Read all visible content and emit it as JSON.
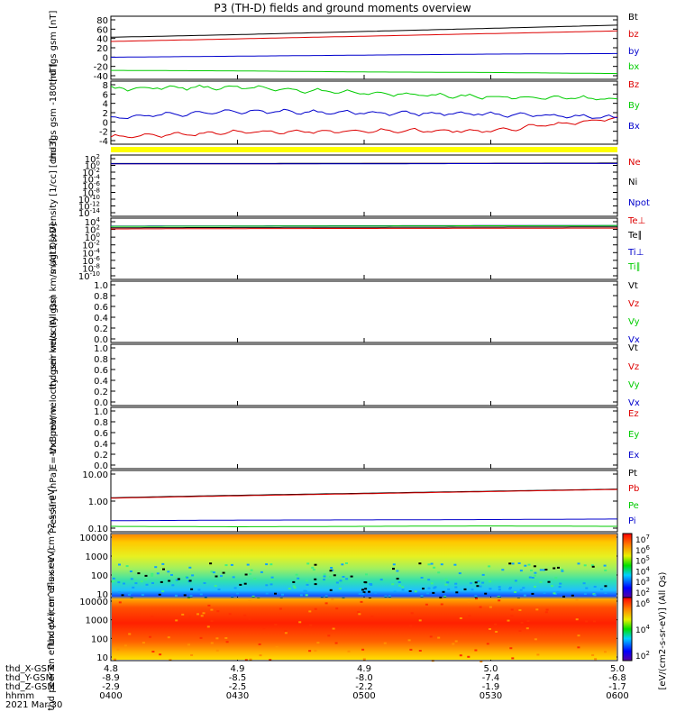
{
  "title": "P3 (TH-D) fields and ground moments overview",
  "footer": {
    "date": "2021 Mar 30",
    "coord_rows": [
      {
        "label": "thd_X-GSM",
        "values": [
          "4.8",
          "4.9",
          "4.9",
          "5.0",
          "5.0"
        ]
      },
      {
        "label": "thd_Y-GSM",
        "values": [
          "-8.9",
          "-8.5",
          "-8.0",
          "-7.4",
          "-6.8"
        ]
      },
      {
        "label": "thd_Z-GSM",
        "values": [
          "-2.9",
          "-2.5",
          "-2.2",
          "-1.9",
          "-1.7"
        ]
      },
      {
        "label": "hhmm",
        "values": [
          "0400",
          "0430",
          "0500",
          "0530",
          "0600"
        ]
      }
    ]
  },
  "colorbars": [
    {
      "unit": "[eV/(cm2-s-sr-eV)] (All Qs)",
      "ticks": [
        "10^7",
        "10^6",
        "10^5",
        "10^4",
        "10^3",
        "10^2"
      ]
    },
    {
      "unit": "[eV/(cm2-s-sr-eV)]",
      "ticks": [
        "10^6",
        "10^4",
        "10^2"
      ]
    }
  ],
  "chart_data": [
    {
      "type": "line",
      "ylabel": "thd fgs gsm [nT]",
      "ylim": [
        -40,
        80
      ],
      "ticks": [
        "80",
        "60",
        "40",
        "20",
        "0",
        "-20",
        "-40"
      ],
      "x": [
        "0400",
        "0430",
        "0500",
        "0530",
        "0600"
      ],
      "series": [
        {
          "name": "Bt",
          "color": "#000000",
          "values": [
            40,
            45,
            51,
            57,
            63
          ]
        },
        {
          "name": "bz",
          "color": "#dd0000",
          "values": [
            32,
            37,
            42,
            47,
            52
          ]
        },
        {
          "name": "by",
          "color": "#0000cc",
          "values": [
            2,
            4,
            6,
            8,
            9
          ]
        },
        {
          "name": "bx",
          "color": "#00cc00",
          "values": [
            -23,
            -24,
            -26,
            -27,
            -29
          ]
        }
      ]
    },
    {
      "type": "line",
      "ylabel": "thd fgs gsm -180 [nT]",
      "ylim": [
        -5,
        8
      ],
      "ticks": [
        "8",
        "6",
        "4",
        "2",
        "0",
        "-2",
        "-4"
      ],
      "x": [
        "0400",
        "0430",
        "0500",
        "0530",
        "0600"
      ],
      "series": [
        {
          "name": "Bz",
          "color": "#dd0000",
          "values": [
            -3.5,
            -2.5,
            -2.3,
            -2.2,
            0.3
          ]
        },
        {
          "name": "By",
          "color": "#00cc00",
          "values": [
            6.5,
            6.8,
            5.5,
            4.8,
            4.3
          ]
        },
        {
          "name": "Bx",
          "color": "#0000cc",
          "values": [
            0.5,
            1.8,
            1.5,
            1.2,
            0.5
          ]
        }
      ]
    },
    {
      "type": "line",
      "ylabel": "Density [1/cc] [cm-3]",
      "ylim": [
        "1e-14",
        "1e2"
      ],
      "ticks": [
        "10^2",
        "10^0",
        "10^-2",
        "10^-4",
        "10^-6",
        "10^-8",
        "10^-10",
        "10^-12",
        "10^-14"
      ],
      "x": [
        "0400",
        "0430",
        "0500",
        "0530",
        "0600"
      ],
      "series": [
        {
          "name": "Ne",
          "color": "#dd0000",
          "values": [
            0.5,
            0.5,
            0.6,
            0.6,
            0.7
          ]
        },
        {
          "name": "Ni",
          "color": "#000000",
          "values": [
            0.6,
            0.6,
            0.7,
            0.7,
            0.8
          ]
        },
        {
          "name": "Npot",
          "color": "#0000cc",
          "values": [
            0.5,
            0.5,
            0.5,
            0.6,
            0.6
          ]
        }
      ]
    },
    {
      "type": "line",
      "ylabel": "magt3 [eV]",
      "ylim": [
        "1e-10",
        "1e6"
      ],
      "ticks": [
        "10^4",
        "10^2",
        "10^0",
        "10^-2",
        "10^-4",
        "10^-6",
        "10^-8",
        "10^-10"
      ],
      "x": [
        "0400",
        "0430",
        "0500",
        "0530",
        "0600"
      ],
      "series": [
        {
          "name": "Te⊥",
          "color": "#dd0000",
          "values": [
            1500,
            1800,
            2000,
            2200,
            2500
          ]
        },
        {
          "name": "Te∥",
          "color": "#000000",
          "values": [
            3000,
            3500,
            4000,
            4500,
            5000
          ]
        },
        {
          "name": "Ti⊥",
          "color": "#0000cc",
          "values": [
            8000,
            9000,
            10000,
            11000,
            12000
          ]
        },
        {
          "name": "Ti∥",
          "color": "#00cc00",
          "values": [
            7000,
            8000,
            9000,
            10000,
            11000
          ]
        }
      ]
    },
    {
      "type": "line",
      "ylabel": "thd peir velocity gsm km/s (All Qs)",
      "ylim": [
        0,
        1
      ],
      "ticks": [
        "1.0",
        "0.8",
        "0.6",
        "0.4",
        "0.2",
        "0.0"
      ],
      "series": [
        {
          "name": "Vt",
          "color": "#000000",
          "values": []
        },
        {
          "name": "Vz",
          "color": "#dd0000",
          "values": []
        },
        {
          "name": "Vy",
          "color": "#00cc00",
          "values": []
        },
        {
          "name": "Vx",
          "color": "#0000cc",
          "values": []
        }
      ]
    },
    {
      "type": "line",
      "ylabel": "thd peer velocity gsm km/s (All Qs)",
      "ylim": [
        0,
        1
      ],
      "ticks": [
        "1.0",
        "0.8",
        "0.6",
        "0.4",
        "0.2",
        "0.0"
      ],
      "series": [
        {
          "name": "Vt",
          "color": "#000000",
          "values": []
        },
        {
          "name": "Vz",
          "color": "#dd0000",
          "values": []
        },
        {
          "name": "Vy",
          "color": "#00cc00",
          "values": []
        },
        {
          "name": "Vx",
          "color": "#0000cc",
          "values": []
        }
      ]
    },
    {
      "type": "line",
      "ylabel": "E=-VxB mV/m",
      "ylim": [
        0,
        1
      ],
      "ticks": [
        "1.0",
        "0.8",
        "0.6",
        "0.4",
        "0.2",
        "0.0"
      ],
      "series": [
        {
          "name": "Ez",
          "color": "#dd0000",
          "values": []
        },
        {
          "name": "Ey",
          "color": "#00cc00",
          "values": []
        },
        {
          "name": "Ex",
          "color": "#0000cc",
          "values": []
        }
      ]
    },
    {
      "type": "line",
      "ylabel": "Pressure [nPa]",
      "ylim": [
        0.03,
        10
      ],
      "ticks": [
        "10.00",
        "1.00",
        "0.10"
      ],
      "x": [
        "0400",
        "0430",
        "0500",
        "0530",
        "0600"
      ],
      "series": [
        {
          "name": "Pt",
          "color": "#000000",
          "values": [
            0.75,
            0.95,
            1.15,
            1.4,
            1.7
          ]
        },
        {
          "name": "Pb",
          "color": "#dd0000",
          "values": [
            0.72,
            0.9,
            1.1,
            1.35,
            1.65
          ]
        },
        {
          "name": "Pe",
          "color": "#00cc00",
          "values": [
            0.05,
            0.048,
            0.05,
            0.052,
            0.05
          ]
        },
        {
          "name": "Pi",
          "color": "#0000cc",
          "values": [
            0.085,
            0.09,
            0.092,
            0.095,
            0.1
          ]
        }
      ]
    },
    {
      "type": "heatmap",
      "ylabel": "thd peir en eflux eV (cm^2-s-sr-eV)",
      "ylim": [
        5,
        20000
      ],
      "ticks": [
        "10000",
        "1000",
        "100",
        "10"
      ],
      "x": [
        "0400",
        "0430",
        "0500",
        "0530",
        "0600"
      ]
    },
    {
      "type": "heatmap",
      "ylabel": "thd peer en eflux eV (cm^2-s-sr-eV)",
      "ylim": [
        5,
        20000
      ],
      "ticks": [
        "10000",
        "1000",
        "100",
        "10"
      ],
      "x": [
        "0400",
        "0430",
        "0500",
        "0530",
        "0600"
      ]
    }
  ]
}
